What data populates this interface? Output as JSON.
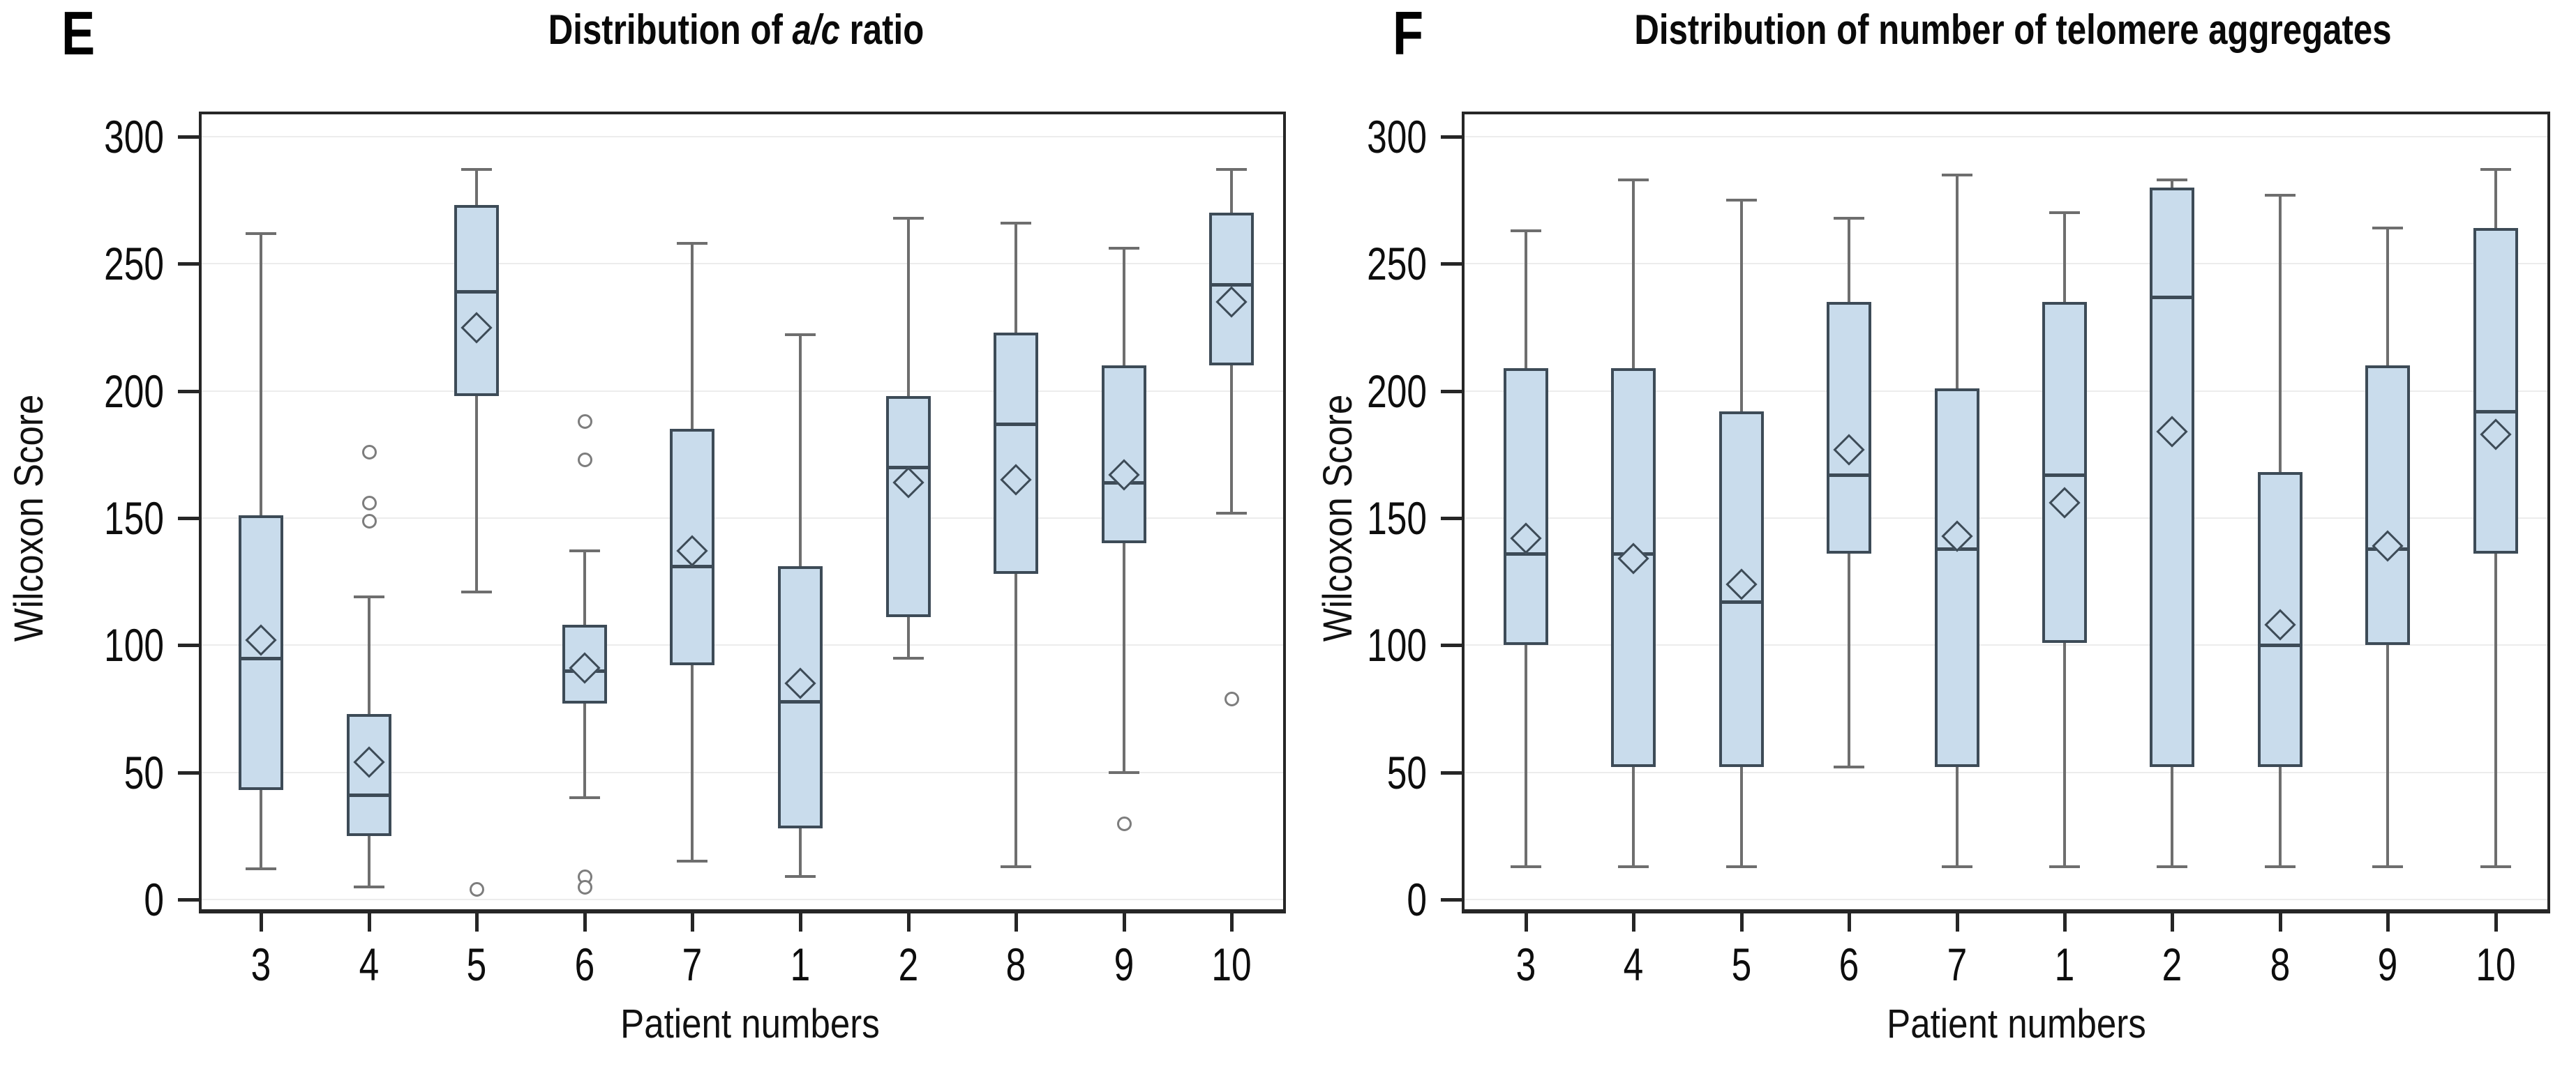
{
  "colors": {
    "box_fill": "#c9dcec",
    "box_border": "#3d4b57",
    "median": "#3d4b57",
    "mean_marker": "#3d4b57",
    "whisker": "#6e6e6e",
    "outlier": "#7d7d7d",
    "gridline": "#ececec",
    "frame": "#262626",
    "background": "#ffffff"
  },
  "chart_data": [
    {
      "type": "box",
      "panel_letter": "E",
      "title_prefix": "Distribution of ",
      "title_italic": "a/c",
      "title_suffix": " ratio",
      "xlabel": "Patient numbers",
      "ylabel": "Wilcoxon Score",
      "ylim": [
        0,
        300
      ],
      "yticks": [
        0,
        50,
        100,
        150,
        200,
        250,
        300
      ],
      "grid": true,
      "legend": "none",
      "categories": [
        "3",
        "4",
        "5",
        "6",
        "7",
        "1",
        "2",
        "8",
        "9",
        "10"
      ],
      "boxes": [
        {
          "category": "3",
          "whisker_low": 12,
          "q1": 43,
          "median": 95,
          "mean": 102,
          "q3": 151,
          "whisker_high": 262,
          "outliers": []
        },
        {
          "category": "4",
          "whisker_low": 5,
          "q1": 25,
          "median": 41,
          "mean": 54,
          "q3": 73,
          "whisker_high": 119,
          "outliers": [
            149,
            156,
            176
          ]
        },
        {
          "category": "5",
          "whisker_low": 121,
          "q1": 198,
          "median": 239,
          "mean": 225,
          "q3": 273,
          "whisker_high": 287,
          "outliers": [
            4
          ]
        },
        {
          "category": "6",
          "whisker_low": 40,
          "q1": 77,
          "median": 90,
          "mean": 91,
          "q3": 108,
          "whisker_high": 137,
          "outliers": [
            173,
            188,
            9,
            5
          ]
        },
        {
          "category": "7",
          "whisker_low": 15,
          "q1": 92,
          "median": 131,
          "mean": 137,
          "q3": 185,
          "whisker_high": 258,
          "outliers": []
        },
        {
          "category": "1",
          "whisker_low": 9,
          "q1": 28,
          "median": 78,
          "mean": 85,
          "q3": 131,
          "whisker_high": 222,
          "outliers": []
        },
        {
          "category": "2",
          "whisker_low": 95,
          "q1": 111,
          "median": 170,
          "mean": 164,
          "q3": 198,
          "whisker_high": 268,
          "outliers": []
        },
        {
          "category": "8",
          "whisker_low": 13,
          "q1": 128,
          "median": 187,
          "mean": 165,
          "q3": 223,
          "whisker_high": 266,
          "outliers": []
        },
        {
          "category": "9",
          "whisker_low": 50,
          "q1": 140,
          "median": 164,
          "mean": 167,
          "q3": 210,
          "whisker_high": 256,
          "outliers": [
            30
          ]
        },
        {
          "category": "10",
          "whisker_low": 152,
          "q1": 210,
          "median": 242,
          "mean": 235,
          "q3": 270,
          "whisker_high": 287,
          "outliers": [
            79
          ]
        }
      ]
    },
    {
      "type": "box",
      "panel_letter": "F",
      "title_prefix": "Distribution of number of telomere aggregates",
      "title_italic": "",
      "title_suffix": "",
      "xlabel": "Patient numbers",
      "ylabel": "Wilcoxon Score",
      "ylim": [
        0,
        300
      ],
      "yticks": [
        0,
        50,
        100,
        150,
        200,
        250,
        300
      ],
      "grid": true,
      "legend": "none",
      "categories": [
        "3",
        "4",
        "5",
        "6",
        "7",
        "1",
        "2",
        "8",
        "9",
        "10"
      ],
      "boxes": [
        {
          "category": "3",
          "whisker_low": 13,
          "q1": 100,
          "median": 136,
          "mean": 142,
          "q3": 209,
          "whisker_high": 263,
          "outliers": []
        },
        {
          "category": "4",
          "whisker_low": 13,
          "q1": 52,
          "median": 136,
          "mean": 134,
          "q3": 209,
          "whisker_high": 283,
          "outliers": []
        },
        {
          "category": "5",
          "whisker_low": 13,
          "q1": 52,
          "median": 117,
          "mean": 124,
          "q3": 192,
          "whisker_high": 275,
          "outliers": []
        },
        {
          "category": "6",
          "whisker_low": 52,
          "q1": 136,
          "median": 167,
          "mean": 177,
          "q3": 235,
          "whisker_high": 268,
          "outliers": []
        },
        {
          "category": "7",
          "whisker_low": 13,
          "q1": 52,
          "median": 138,
          "mean": 143,
          "q3": 201,
          "whisker_high": 285,
          "outliers": []
        },
        {
          "category": "1",
          "whisker_low": 13,
          "q1": 101,
          "median": 167,
          "mean": 156,
          "q3": 235,
          "whisker_high": 270,
          "outliers": []
        },
        {
          "category": "2",
          "whisker_low": 13,
          "q1": 52,
          "median": 237,
          "mean": 184,
          "q3": 280,
          "whisker_high": 283,
          "outliers": []
        },
        {
          "category": "8",
          "whisker_low": 13,
          "q1": 52,
          "median": 100,
          "mean": 108,
          "q3": 168,
          "whisker_high": 277,
          "outliers": []
        },
        {
          "category": "9",
          "whisker_low": 13,
          "q1": 100,
          "median": 138,
          "mean": 139,
          "q3": 210,
          "whisker_high": 264,
          "outliers": []
        },
        {
          "category": "10",
          "whisker_low": 13,
          "q1": 136,
          "median": 192,
          "mean": 183,
          "q3": 264,
          "whisker_high": 287,
          "outliers": []
        }
      ]
    }
  ]
}
